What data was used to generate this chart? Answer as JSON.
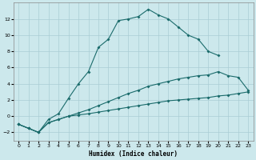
{
  "xlabel": "Humidex (Indice chaleur)",
  "ylabel": "",
  "xlim": [
    -0.5,
    23.5
  ],
  "ylim": [
    -3,
    14
  ],
  "xticks": [
    0,
    1,
    2,
    3,
    4,
    5,
    6,
    7,
    8,
    9,
    10,
    11,
    12,
    13,
    14,
    15,
    16,
    17,
    18,
    19,
    20,
    21,
    22,
    23
  ],
  "yticks": [
    -2,
    0,
    2,
    4,
    6,
    8,
    10,
    12
  ],
  "bg_color": "#cce8ec",
  "line_color": "#1a6b6b",
  "grid_color": "#aacdd4",
  "line1_x": [
    0,
    1,
    2,
    3,
    4,
    5,
    6,
    7,
    8,
    9,
    10,
    11,
    12,
    13,
    14,
    15,
    16,
    17,
    18,
    19,
    20
  ],
  "line1_y": [
    -1.0,
    -1.5,
    -2.0,
    -0.4,
    0.3,
    2.2,
    4.0,
    5.5,
    8.5,
    9.5,
    11.8,
    12.0,
    12.3,
    13.2,
    12.5,
    12.0,
    11.0,
    10.0,
    9.5,
    8.0,
    7.5
  ],
  "line2_x": [
    0,
    1,
    2,
    3,
    4,
    5,
    6,
    7,
    8,
    9,
    10,
    11,
    12,
    13,
    14,
    15,
    16,
    17,
    18,
    19,
    20,
    21,
    22,
    23
  ],
  "line2_y": [
    -1.0,
    -1.5,
    -2.0,
    -0.8,
    -0.4,
    0.0,
    0.4,
    0.8,
    1.3,
    1.8,
    2.3,
    2.8,
    3.2,
    3.7,
    4.0,
    4.3,
    4.6,
    4.8,
    5.0,
    5.1,
    5.5,
    5.0,
    4.8,
    3.2
  ],
  "line3_x": [
    0,
    1,
    2,
    3,
    4,
    5,
    6,
    7,
    8,
    9,
    10,
    11,
    12,
    13,
    14,
    15,
    16,
    17,
    18,
    19,
    20,
    21,
    22,
    23
  ],
  "line3_y": [
    -1.0,
    -1.5,
    -2.0,
    -0.8,
    -0.4,
    0.0,
    0.15,
    0.3,
    0.5,
    0.7,
    0.9,
    1.1,
    1.3,
    1.5,
    1.7,
    1.9,
    2.0,
    2.1,
    2.2,
    2.3,
    2.5,
    2.6,
    2.8,
    3.0
  ]
}
